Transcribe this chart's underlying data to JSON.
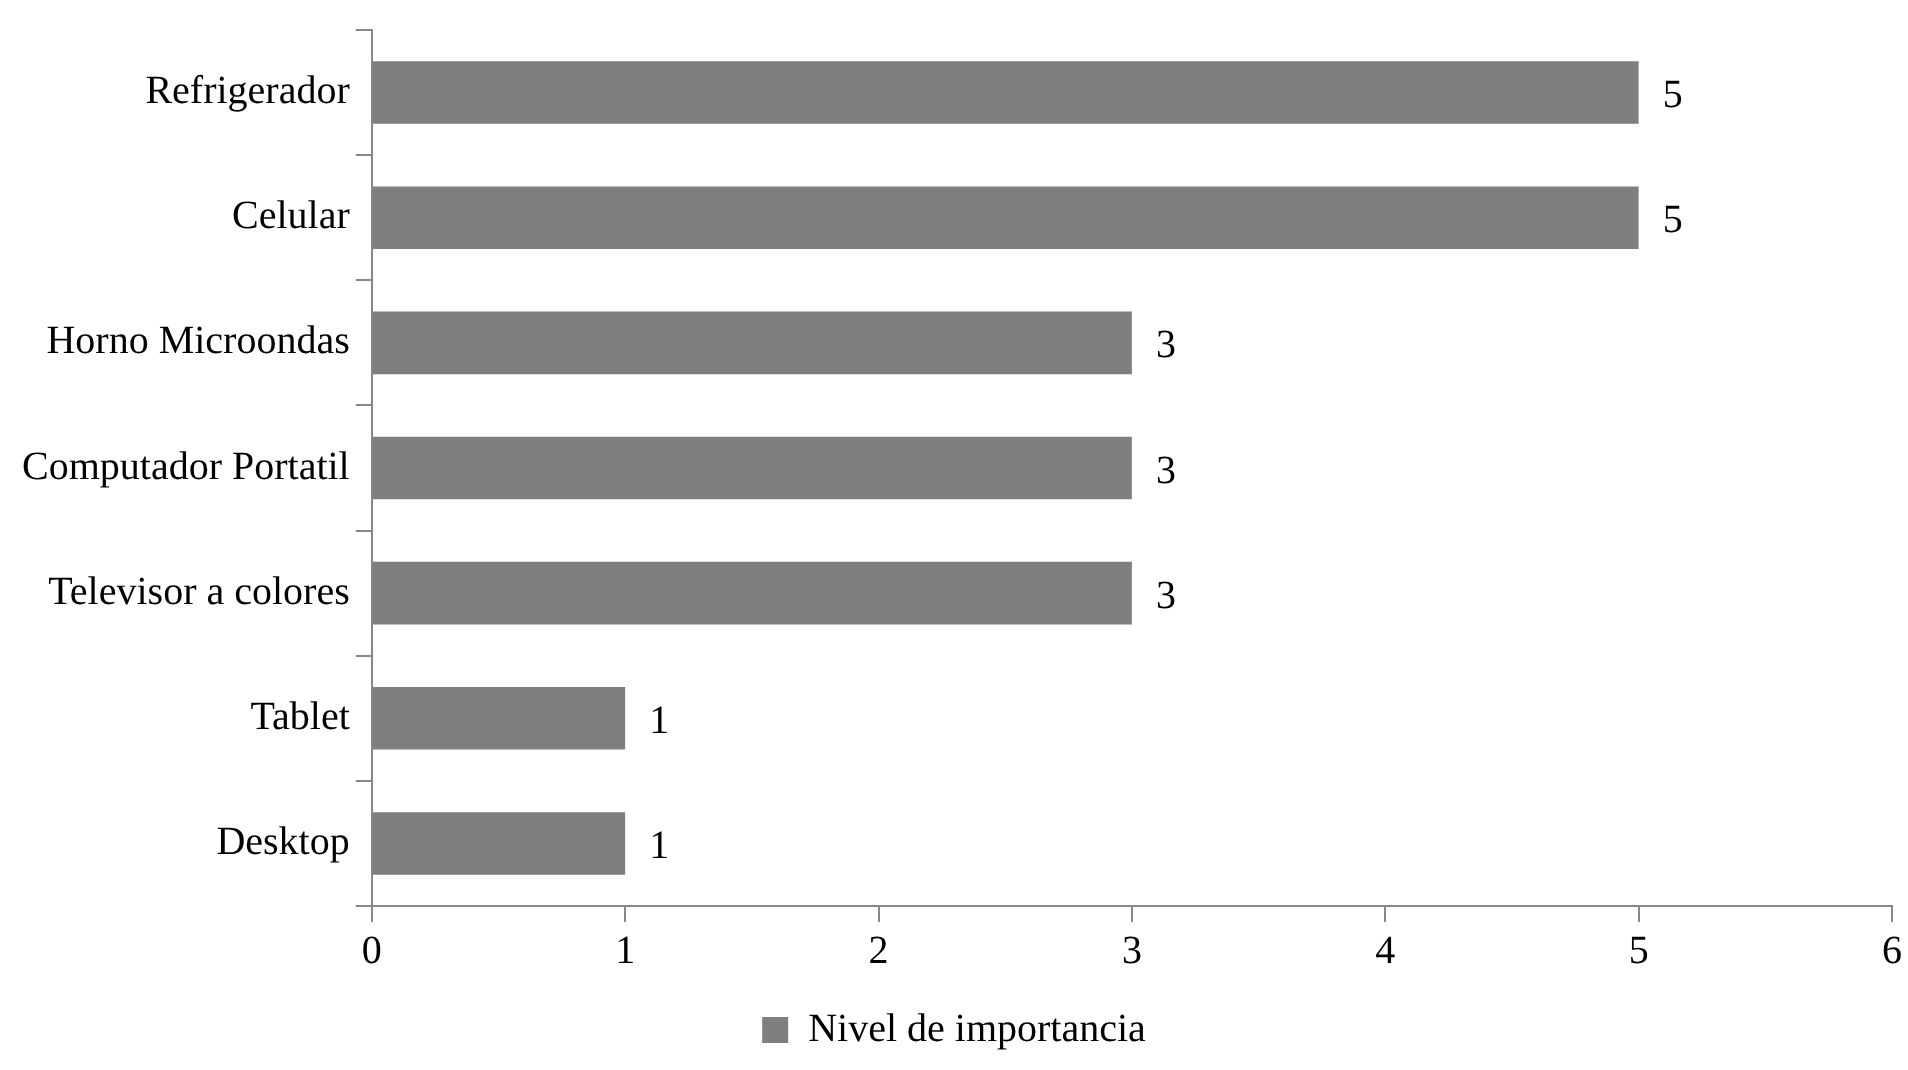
{
  "chart_data": {
    "type": "bar",
    "orientation": "horizontal",
    "categories": [
      "Refrigerador",
      "Celular",
      "Horno Microondas",
      "Computador Portatil",
      "Televisor a colores",
      "Tablet",
      "Desktop"
    ],
    "series": [
      {
        "name": "Nivel de importancia",
        "color": "#7f7f7f",
        "values": [
          5,
          5,
          3,
          3,
          3,
          1,
          1
        ]
      }
    ],
    "xlim": [
      0,
      6
    ],
    "xticks": [
      0,
      1,
      2,
      3,
      4,
      5,
      6
    ],
    "data_labels": true,
    "legend": "bottom"
  }
}
